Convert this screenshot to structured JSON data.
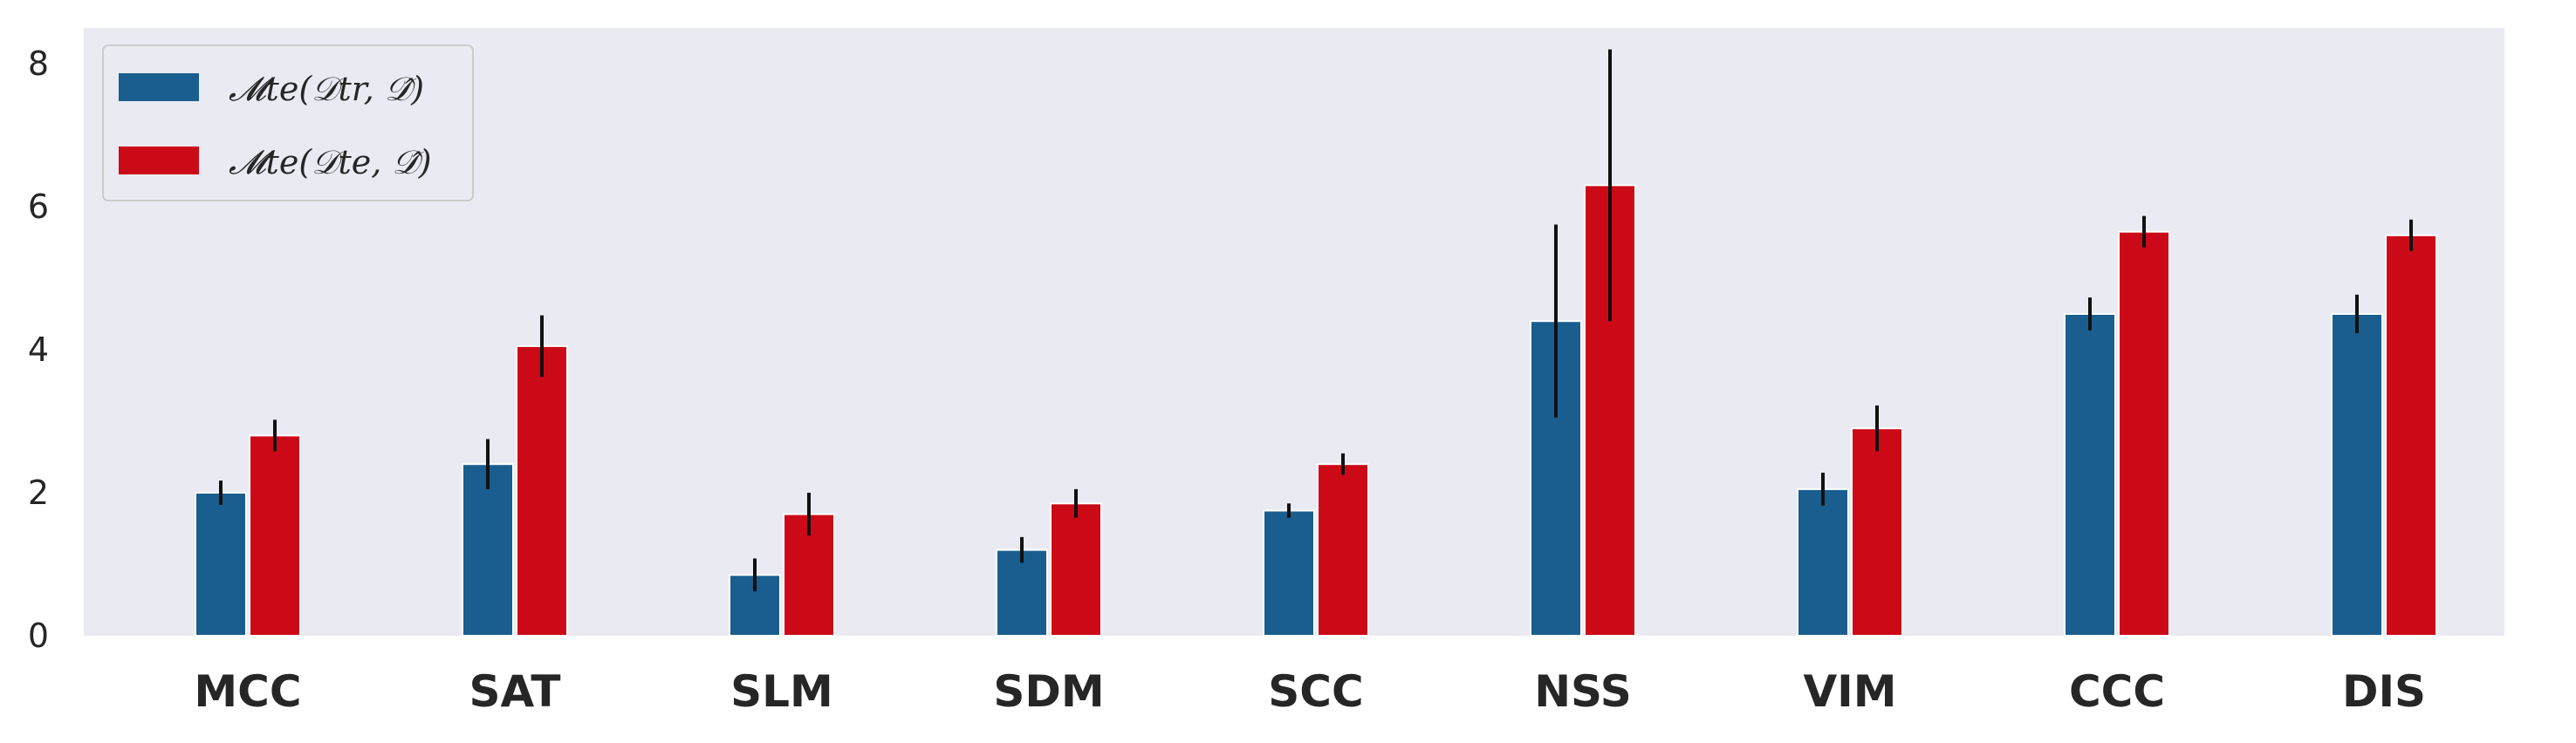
{
  "chart_data": {
    "type": "bar",
    "title": "",
    "xlabel": "",
    "ylabel": "",
    "categories": [
      "MCC",
      "SAT",
      "SLM",
      "SDM",
      "SCC",
      "NSS",
      "VIM",
      "CCC",
      "DIS"
    ],
    "series": [
      {
        "name": "𝓜te(𝒟tr, 𝒟̂)",
        "color": "#1a5e8f",
        "values": [
          2.0,
          2.4,
          0.85,
          1.2,
          1.75,
          4.4,
          2.05,
          4.5,
          4.5
        ],
        "errors": [
          0.17,
          0.35,
          0.23,
          0.18,
          0.1,
          1.35,
          0.23,
          0.23,
          0.27
        ]
      },
      {
        "name": "𝓜te(𝒟te, 𝒟̂)",
        "color": "#cc0a17",
        "values": [
          2.8,
          4.05,
          1.7,
          1.85,
          2.4,
          6.3,
          2.9,
          5.65,
          5.6
        ],
        "errors": [
          0.22,
          0.43,
          0.3,
          0.2,
          0.15,
          1.9,
          0.32,
          0.22,
          0.22
        ]
      }
    ],
    "ylim": [
      0,
      8.5
    ],
    "yticks": [
      0,
      2,
      4,
      6,
      8
    ],
    "grid": false,
    "legend_position": "top-left",
    "background_color": "#eaeaf2",
    "errorbar_color": "#111111"
  }
}
